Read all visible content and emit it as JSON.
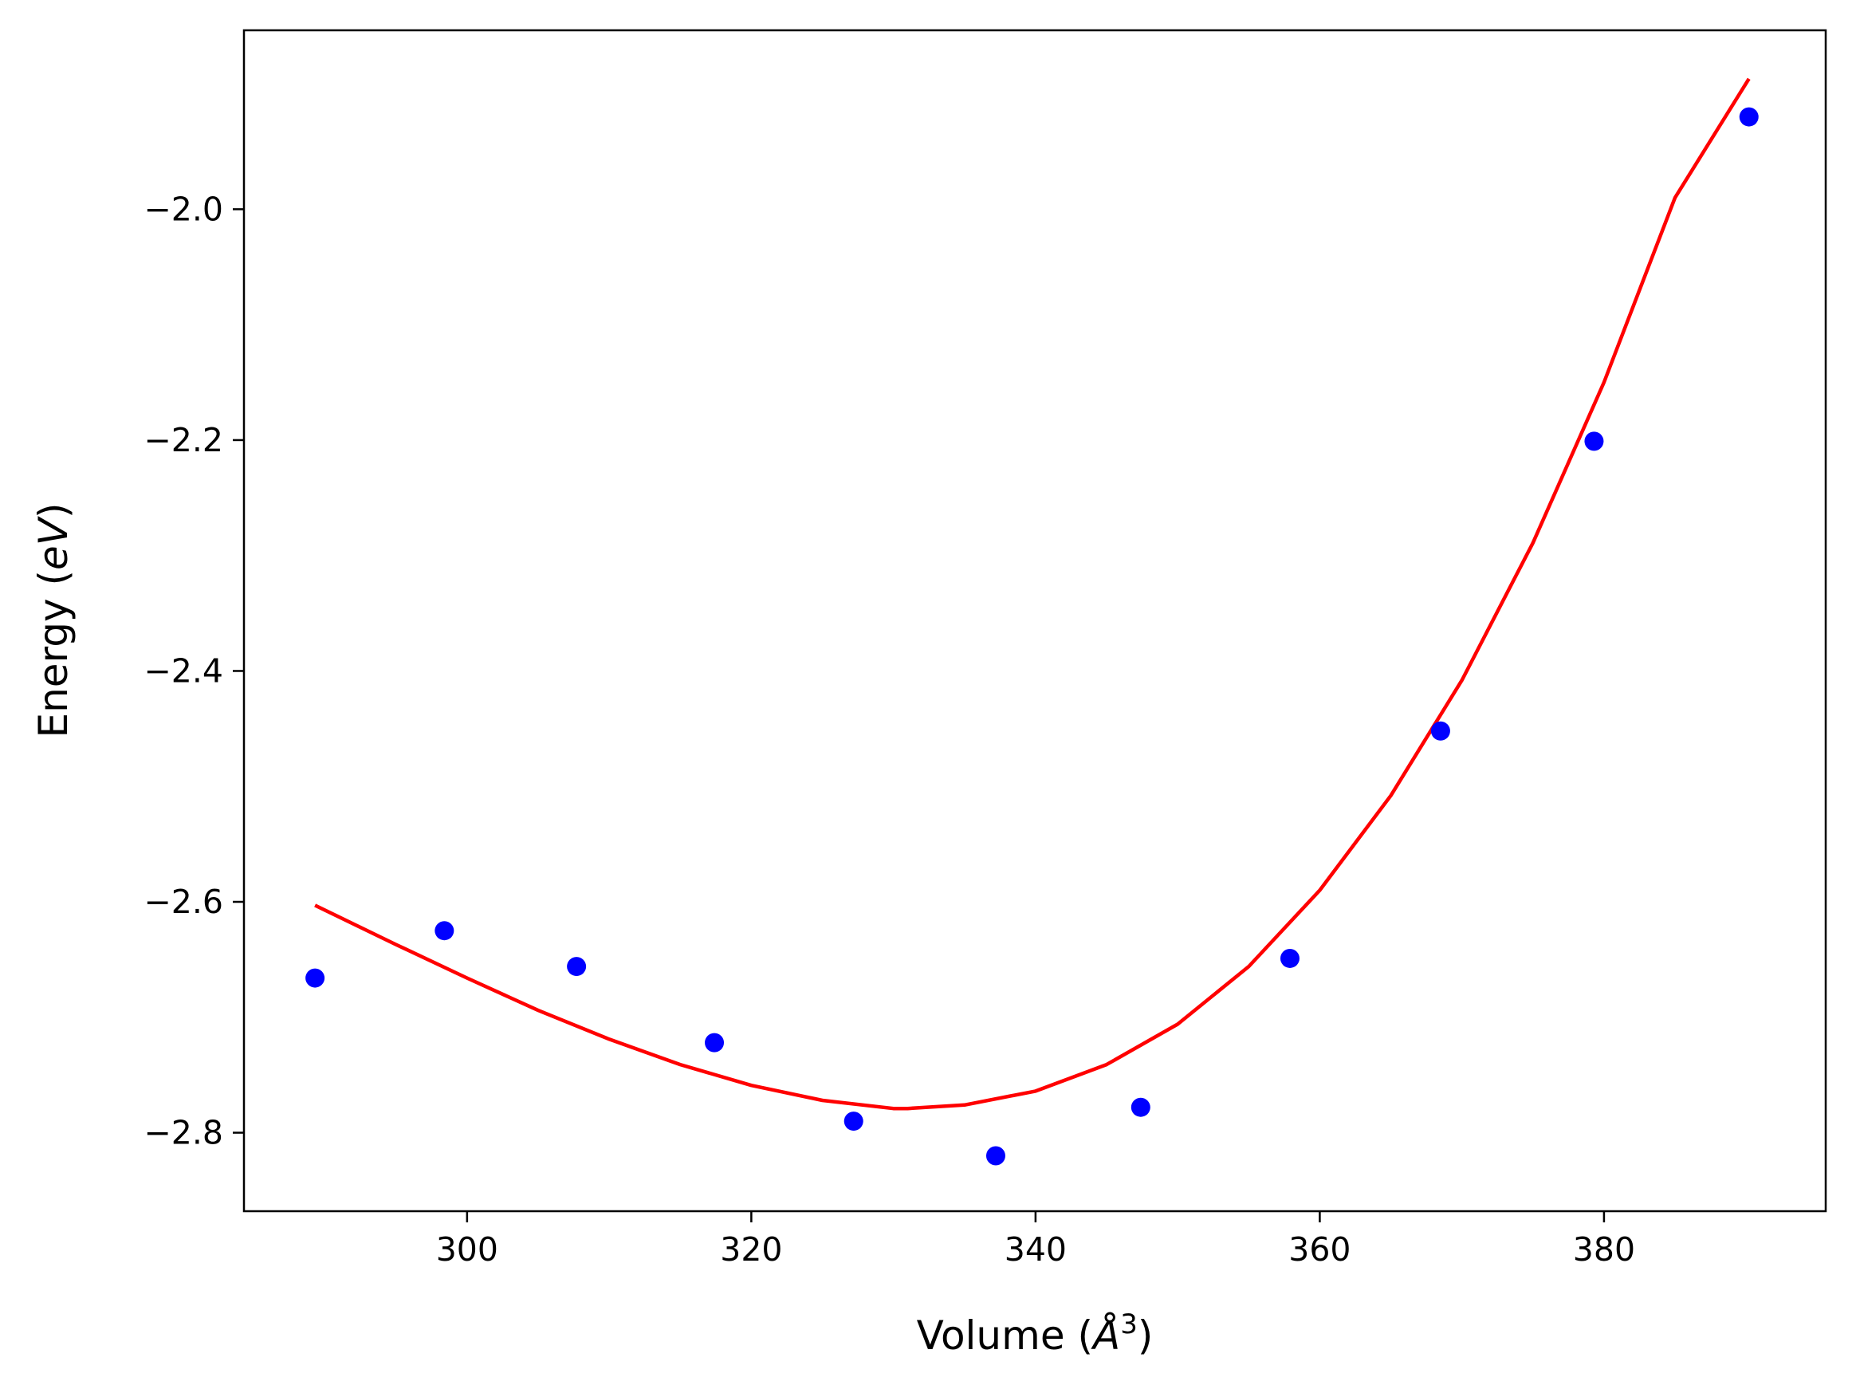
{
  "chart_data": {
    "type": "scatter",
    "title": "",
    "xlabel": "Volume (",
    "xlabel_symbol": "Å",
    "xlabel_power": "3",
    "xlabel_close": ")",
    "ylabel": "Energy (",
    "ylabel_unit": "eV",
    "ylabel_close": ")",
    "xlim": [
      284.3,
      395.6
    ],
    "ylim": [
      -2.868,
      -1.845
    ],
    "xticks": [
      300,
      320,
      340,
      360,
      380
    ],
    "xtick_labels": [
      "300",
      "320",
      "340",
      "360",
      "380"
    ],
    "yticks": [
      -2.8,
      -2.6,
      -2.4,
      -2.2,
      -2.0
    ],
    "ytick_labels": [
      "−2.8",
      "−2.6",
      "−2.4",
      "−2.2",
      "−2.0"
    ],
    "grid": false,
    "series": [
      {
        "kind": "scatter",
        "color": "#0000ff",
        "x": [
          289.3,
          298.4,
          307.7,
          317.4,
          327.2,
          337.2,
          347.4,
          357.9,
          368.5,
          379.3,
          390.2
        ],
        "y": [
          -2.666,
          -2.625,
          -2.656,
          -2.722,
          -2.79,
          -2.82,
          -2.778,
          -2.649,
          -2.452,
          -2.201,
          -1.92
        ]
      },
      {
        "kind": "line",
        "color": "#ff0000",
        "x": [
          289.3,
          295,
          300,
          305,
          310,
          315,
          320,
          325,
          330,
          331,
          335,
          340,
          345,
          350,
          355,
          360,
          365,
          370,
          375,
          380,
          385,
          390.2
        ],
        "y": [
          -2.603,
          -2.637,
          -2.666,
          -2.694,
          -2.719,
          -2.741,
          -2.759,
          -2.772,
          -2.779,
          -2.779,
          -2.776,
          -2.764,
          -2.741,
          -2.706,
          -2.656,
          -2.59,
          -2.508,
          -2.408,
          -2.289,
          -2.15,
          -1.99,
          -1.887
        ]
      }
    ]
  }
}
